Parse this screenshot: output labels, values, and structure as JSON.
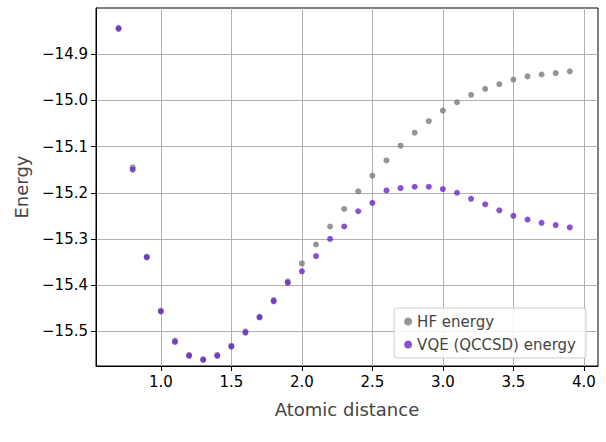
{
  "chart_data": {
    "type": "scatter",
    "x_label": "Atomic distance",
    "y_label": "Energy",
    "xlim": [
      0.54,
      4.1
    ],
    "ylim": [
      -15.575,
      -14.8
    ],
    "xticks": [
      {
        "value": 1.0,
        "label": "1.0"
      },
      {
        "value": 1.5,
        "label": "1.5"
      },
      {
        "value": 2.0,
        "label": "2.0"
      },
      {
        "value": 2.5,
        "label": "2.5"
      },
      {
        "value": 3.0,
        "label": "3.0"
      },
      {
        "value": 3.5,
        "label": "3.5"
      },
      {
        "value": 4.0,
        "label": "4.0"
      }
    ],
    "yticks": [
      {
        "value": -15.5,
        "label": "−15.5"
      },
      {
        "value": -15.4,
        "label": "−15.4"
      },
      {
        "value": -15.3,
        "label": "−15.3"
      },
      {
        "value": -15.2,
        "label": "−15.2"
      },
      {
        "value": -15.1,
        "label": "−15.1"
      },
      {
        "value": -15.0,
        "label": "−15.0"
      },
      {
        "value": -14.9,
        "label": "−14.9"
      }
    ],
    "grid": true,
    "legend": "lower right",
    "marker": "circle",
    "x": [
      0.7,
      0.8,
      0.9,
      1.0,
      1.1,
      1.2,
      1.3,
      1.4,
      1.5,
      1.6,
      1.7,
      1.8,
      1.9,
      2.0,
      2.1,
      2.2,
      2.3,
      2.4,
      2.5,
      2.6,
      2.7,
      2.8,
      2.9,
      3.0,
      3.1,
      3.2,
      3.3,
      3.4,
      3.5,
      3.6,
      3.7,
      3.8,
      3.9
    ],
    "series": [
      {
        "name": "HF energy",
        "color": "#7b7b7b",
        "values": [
          -14.843,
          -15.145,
          -15.338,
          -15.455,
          -15.52,
          -15.551,
          -15.56,
          -15.551,
          -15.531,
          -15.5,
          -15.468,
          -15.432,
          -15.392,
          -15.353,
          -15.312,
          -15.273,
          -15.235,
          -15.197,
          -15.163,
          -15.13,
          -15.098,
          -15.07,
          -15.045,
          -15.022,
          -15.004,
          -14.988,
          -14.975,
          -14.965,
          -14.955,
          -14.948,
          -14.944,
          -14.941,
          -14.937
        ]
      },
      {
        "name": "VQE (QCCSD) energy",
        "color": "#6a25c9",
        "values": [
          -14.845,
          -15.15,
          -15.34,
          -15.457,
          -15.523,
          -15.553,
          -15.562,
          -15.553,
          -15.533,
          -15.503,
          -15.47,
          -15.435,
          -15.395,
          -15.37,
          -15.337,
          -15.3,
          -15.273,
          -15.24,
          -15.222,
          -15.195,
          -15.19,
          -15.187,
          -15.187,
          -15.192,
          -15.2,
          -15.213,
          -15.225,
          -15.238,
          -15.25,
          -15.258,
          -15.265,
          -15.27,
          -15.275
        ]
      }
    ]
  }
}
